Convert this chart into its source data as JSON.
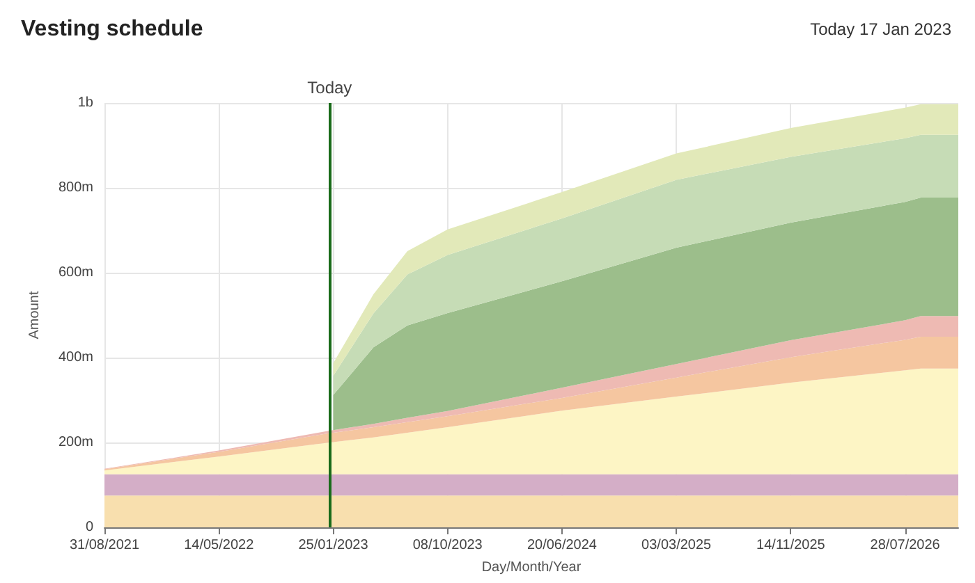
{
  "chart_data": {
    "type": "area",
    "title": "Vesting schedule",
    "subtitle": "Today 17 Jan 2023",
    "xlabel": "Day/Month/Year",
    "ylabel": "Amount",
    "stacked": true,
    "grid": true,
    "x": [
      "2021-08-31",
      "2022-05-14",
      "2023-01-17",
      "2023-01-25",
      "2023-04-25",
      "2023-07-10",
      "2023-10-08",
      "2024-06-20",
      "2025-03-03",
      "2025-11-14",
      "2026-07-28",
      "2026-09-01",
      "2026-11-24"
    ],
    "xlim": [
      "2021-08-31",
      "2026-11-24"
    ],
    "xticks": [
      {
        "value": "2021-08-31",
        "label": "31/08/2021"
      },
      {
        "value": "2022-05-14",
        "label": "14/05/2022"
      },
      {
        "value": "2023-01-25",
        "label": "25/01/2023"
      },
      {
        "value": "2023-10-08",
        "label": "08/10/2023"
      },
      {
        "value": "2024-06-20",
        "label": "20/06/2024"
      },
      {
        "value": "2025-03-03",
        "label": "03/03/2025"
      },
      {
        "value": "2025-11-14",
        "label": "14/11/2025"
      },
      {
        "value": "2026-07-28",
        "label": "28/07/2026"
      }
    ],
    "ylim": [
      0,
      1000000000
    ],
    "yticks": [
      0,
      {
        "value": 200000000,
        "label": "200m"
      },
      {
        "value": 400000000,
        "label": "400m"
      },
      {
        "value": 600000000,
        "label": "600m"
      },
      {
        "value": 800000000,
        "label": "800m"
      },
      {
        "value": 1000000000,
        "label": "1b"
      }
    ],
    "series": [
      {
        "color": "#f8dfae",
        "values": [
          75000000,
          75000000,
          75000000,
          75000000,
          75000000,
          75000000,
          75000000,
          75000000,
          75000000,
          75000000,
          75000000,
          75000000,
          75000000
        ]
      },
      {
        "color": "#d4aec7",
        "values": [
          50000000,
          50000000,
          50000000,
          50000000,
          50000000,
          50000000,
          50000000,
          50000000,
          50000000,
          50000000,
          50000000,
          50000000,
          50000000
        ]
      },
      {
        "color": "#fdf5c5",
        "values": [
          9000000,
          42000000,
          75000000,
          76000000,
          87000000,
          98000000,
          111000000,
          150000000,
          183000000,
          216000000,
          245000000,
          249000000,
          249000000
        ]
      },
      {
        "color": "#f5c6a0",
        "values": [
          3000000,
          11000000,
          22000000,
          22000000,
          24000000,
          25000000,
          26000000,
          30000000,
          45000000,
          60000000,
          72000000,
          75000000,
          75000000
        ]
      },
      {
        "color": "#eebab3",
        "values": [
          1000000,
          3000000,
          6000000,
          6000000,
          8000000,
          10000000,
          12000000,
          24000000,
          32000000,
          40000000,
          46000000,
          49000000,
          49000000
        ]
      },
      {
        "color": "#9cbe8b",
        "values": [
          null,
          null,
          null,
          83000000,
          180000000,
          218000000,
          231000000,
          251000000,
          274000000,
          277000000,
          279000000,
          279000000,
          279000000
        ]
      },
      {
        "color": "#c6dcb6",
        "values": [
          null,
          null,
          null,
          45000000,
          80000000,
          120000000,
          137000000,
          148000000,
          160000000,
          155000000,
          150000000,
          148000000,
          148000000
        ]
      },
      {
        "color": "#e2e9b9",
        "values": [
          null,
          null,
          null,
          30000000,
          45000000,
          55000000,
          60000000,
          62000000,
          62000000,
          68000000,
          72000000,
          72000000,
          72000000
        ]
      }
    ],
    "ref_lines": [
      {
        "axis": "x",
        "value": "2023-01-17",
        "label": "Today",
        "color": "#1a6b1a"
      }
    ]
  }
}
